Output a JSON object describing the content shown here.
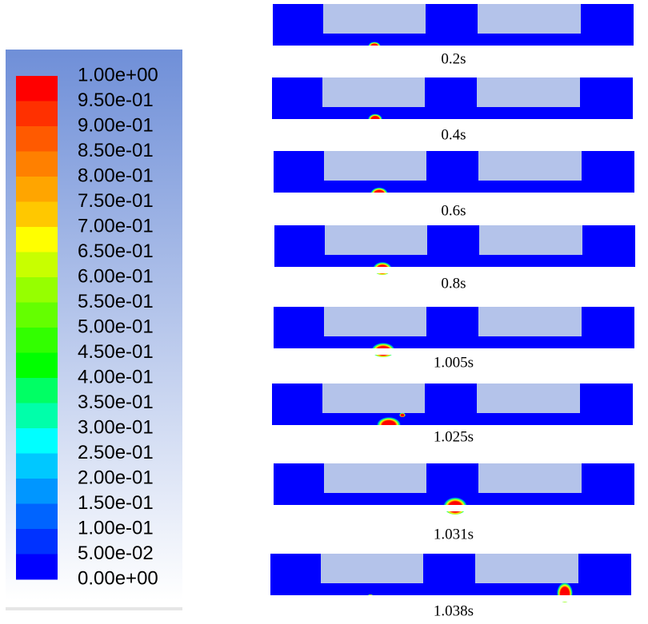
{
  "colorbar": {
    "labels": [
      "1.00e+00",
      "9.50e-01",
      "9.00e-01",
      "8.50e-01",
      "8.00e-01",
      "7.50e-01",
      "7.00e-01",
      "6.50e-01",
      "6.00e-01",
      "5.50e-01",
      "5.00e-01",
      "4.50e-01",
      "4.00e-01",
      "3.50e-01",
      "3.00e-01",
      "2.50e-01",
      "2.00e-01",
      "1.50e-01",
      "1.00e-01",
      "5.00e-02",
      "0.00e+00"
    ],
    "colors": [
      "#ff0000",
      "#ff3000",
      "#ff5a00",
      "#ff8000",
      "#ffa500",
      "#ffc800",
      "#ffff00",
      "#c8ff00",
      "#96ff00",
      "#64ff00",
      "#32ff00",
      "#00ff00",
      "#00ff64",
      "#00ffaa",
      "#00ffff",
      "#00c8ff",
      "#0096ff",
      "#0064ff",
      "#0032ff",
      "#0000ff"
    ]
  },
  "frames": [
    {
      "caption": "0.2s"
    },
    {
      "caption": "0.4s"
    },
    {
      "caption": "0.6s"
    },
    {
      "caption": "0.8s"
    },
    {
      "caption": "1.005s"
    },
    {
      "caption": "1.025s"
    },
    {
      "caption": "1.031s"
    },
    {
      "caption": "1.038s"
    }
  ]
}
